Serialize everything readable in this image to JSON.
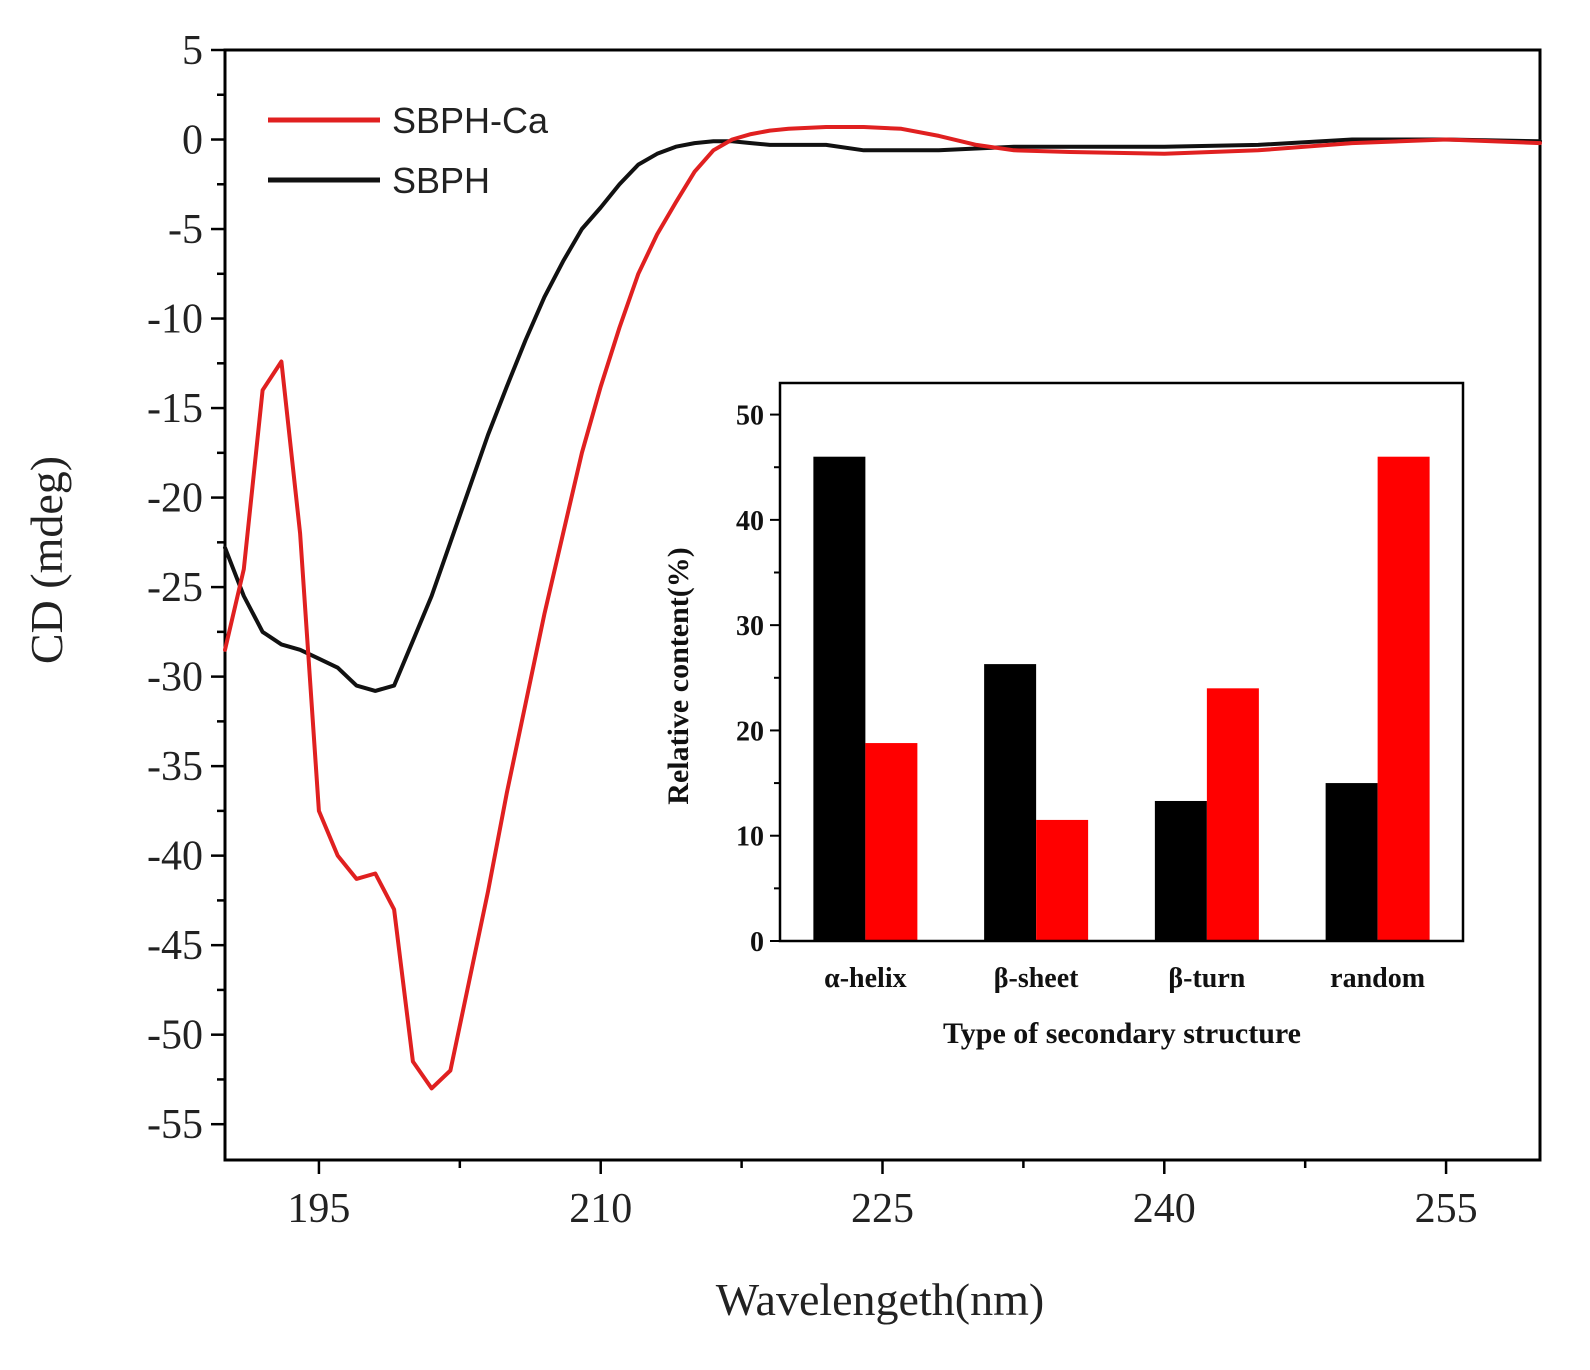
{
  "chart_data": [
    {
      "type": "line",
      "xlabel": "Wavelengeth(nm)",
      "ylabel": "CD (mdeg)",
      "xlim": [
        190,
        260
      ],
      "ylim": [
        -57,
        5
      ],
      "xticks": [
        "195",
        "210",
        "225",
        "240",
        "255"
      ],
      "yticks": [
        "5",
        "0",
        "-5",
        "-10",
        "-15",
        "-20",
        "-25",
        "-30",
        "-35",
        "-40",
        "-45",
        "-50",
        "-55"
      ],
      "legend_position": "top-left",
      "colors": {
        "SBPH-Ca": "#e02020",
        "SBPH": "#111111"
      },
      "series": [
        {
          "name": "SBPH-Ca",
          "x": [
            190,
            191,
            192,
            193,
            194,
            195,
            196,
            197,
            198,
            199,
            200,
            201,
            202,
            203,
            204,
            205,
            206,
            207,
            208,
            209,
            210,
            211,
            212,
            213,
            214,
            215,
            216,
            217,
            218,
            219,
            220,
            222,
            224,
            226,
            228,
            230,
            232,
            235,
            240,
            245,
            250,
            255,
            260
          ],
          "y": [
            -28.5,
            -24.0,
            -14.0,
            -12.4,
            -22.0,
            -37.5,
            -40.0,
            -41.3,
            -41.0,
            -43.0,
            -51.5,
            -53.0,
            -52.0,
            -47.0,
            -42.0,
            -36.5,
            -31.5,
            -26.5,
            -22.0,
            -17.5,
            -13.8,
            -10.5,
            -7.5,
            -5.3,
            -3.5,
            -1.8,
            -0.6,
            0.0,
            0.3,
            0.5,
            0.6,
            0.7,
            0.7,
            0.6,
            0.2,
            -0.3,
            -0.6,
            -0.7,
            -0.8,
            -0.6,
            -0.2,
            0.0,
            -0.2
          ]
        },
        {
          "name": "SBPH",
          "x": [
            190,
            191,
            192,
            193,
            194,
            195,
            196,
            197,
            198,
            199,
            200,
            201,
            202,
            203,
            204,
            205,
            206,
            207,
            208,
            209,
            210,
            211,
            212,
            213,
            214,
            215,
            216,
            217,
            218,
            219,
            220,
            222,
            224,
            226,
            228,
            230,
            232,
            235,
            240,
            245,
            250,
            255,
            260
          ],
          "y": [
            -22.8,
            -25.5,
            -27.5,
            -28.2,
            -28.5,
            -29.0,
            -29.5,
            -30.5,
            -30.8,
            -30.5,
            -28.0,
            -25.5,
            -22.5,
            -19.5,
            -16.5,
            -13.8,
            -11.2,
            -8.8,
            -6.8,
            -5.0,
            -3.8,
            -2.5,
            -1.4,
            -0.8,
            -0.4,
            -0.2,
            -0.1,
            -0.1,
            -0.2,
            -0.3,
            -0.3,
            -0.3,
            -0.6,
            -0.6,
            -0.6,
            -0.5,
            -0.4,
            -0.4,
            -0.4,
            -0.3,
            0.0,
            0.0,
            -0.1
          ]
        }
      ]
    },
    {
      "type": "bar",
      "xlabel": "Type of secondary structure",
      "ylabel": "Relative content(%)",
      "ylim": [
        0,
        53
      ],
      "yticks": [
        "0",
        "10",
        "20",
        "30",
        "40",
        "50"
      ],
      "categories": [
        "α-helix",
        "β-sheet",
        "β-turn",
        "random"
      ],
      "colors": [
        "#000000",
        "#ff0000"
      ],
      "series": [
        {
          "values": [
            46,
            26.3,
            13.3,
            15
          ]
        },
        {
          "values": [
            18.8,
            11.5,
            24,
            46
          ]
        }
      ]
    }
  ]
}
